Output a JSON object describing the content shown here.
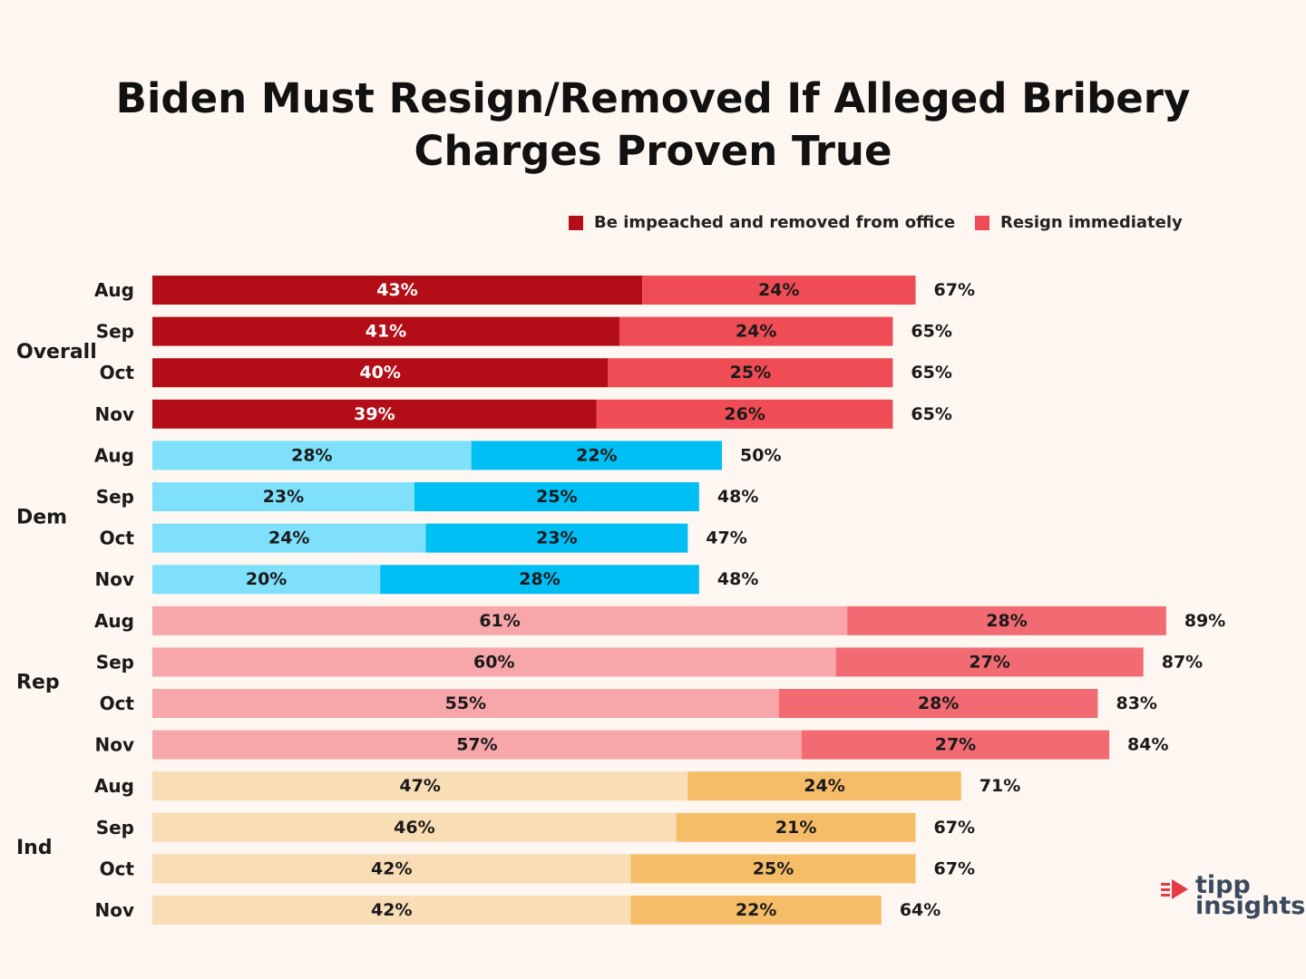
{
  "title": {
    "line1": "Biden Must Resign/Removed If Alleged Bribery",
    "line2": "Charges Proven True"
  },
  "legend": {
    "impeached": "Be impeached and removed from office",
    "resign": "Resign immediately"
  },
  "logo": {
    "line1": "tipp",
    "line2": "insights"
  },
  "chart_data": {
    "type": "bar",
    "orientation": "horizontal",
    "stacked": true,
    "xlim": [
      0,
      100
    ],
    "series_names": [
      "Be impeached and removed from office",
      "Resign immediately"
    ],
    "groups": [
      {
        "name": "Overall",
        "colors": [
          "#b30e17",
          "#ef4c55"
        ],
        "label_colors": [
          "#ffffff",
          "#1a1a1a"
        ],
        "rows": [
          {
            "month": "Aug",
            "impeached": 43,
            "resign": 24,
            "total": 67
          },
          {
            "month": "Sep",
            "impeached": 41,
            "resign": 24,
            "total": 65
          },
          {
            "month": "Oct",
            "impeached": 40,
            "resign": 25,
            "total": 65
          },
          {
            "month": "Nov",
            "impeached": 39,
            "resign": 26,
            "total": 65
          }
        ]
      },
      {
        "name": "Dem",
        "colors": [
          "#7fe0fc",
          "#00bff5"
        ],
        "label_colors": [
          "#1a1a1a",
          "#1a1a1a"
        ],
        "rows": [
          {
            "month": "Aug",
            "impeached": 28,
            "resign": 22,
            "total": 50
          },
          {
            "month": "Sep",
            "impeached": 23,
            "resign": 25,
            "total": 48
          },
          {
            "month": "Oct",
            "impeached": 24,
            "resign": 23,
            "total": 47
          },
          {
            "month": "Nov",
            "impeached": 20,
            "resign": 28,
            "total": 48
          }
        ]
      },
      {
        "name": "Rep",
        "colors": [
          "#f7a6a9",
          "#f26b73"
        ],
        "label_colors": [
          "#1a1a1a",
          "#1a1a1a"
        ],
        "rows": [
          {
            "month": "Aug",
            "impeached": 61,
            "resign": 28,
            "total": 89
          },
          {
            "month": "Sep",
            "impeached": 60,
            "resign": 27,
            "total": 87
          },
          {
            "month": "Oct",
            "impeached": 55,
            "resign": 28,
            "total": 83
          },
          {
            "month": "Nov",
            "impeached": 57,
            "resign": 27,
            "total": 84
          }
        ]
      },
      {
        "name": "Ind",
        "colors": [
          "#f9ddb4",
          "#f6bd68"
        ],
        "label_colors": [
          "#1a1a1a",
          "#1a1a1a"
        ],
        "rows": [
          {
            "month": "Aug",
            "impeached": 47,
            "resign": 24,
            "total": 71
          },
          {
            "month": "Sep",
            "impeached": 46,
            "resign": 21,
            "total": 67
          },
          {
            "month": "Oct",
            "impeached": 42,
            "resign": 25,
            "total": 67
          },
          {
            "month": "Nov",
            "impeached": 42,
            "resign": 22,
            "total": 64
          }
        ]
      }
    ]
  }
}
